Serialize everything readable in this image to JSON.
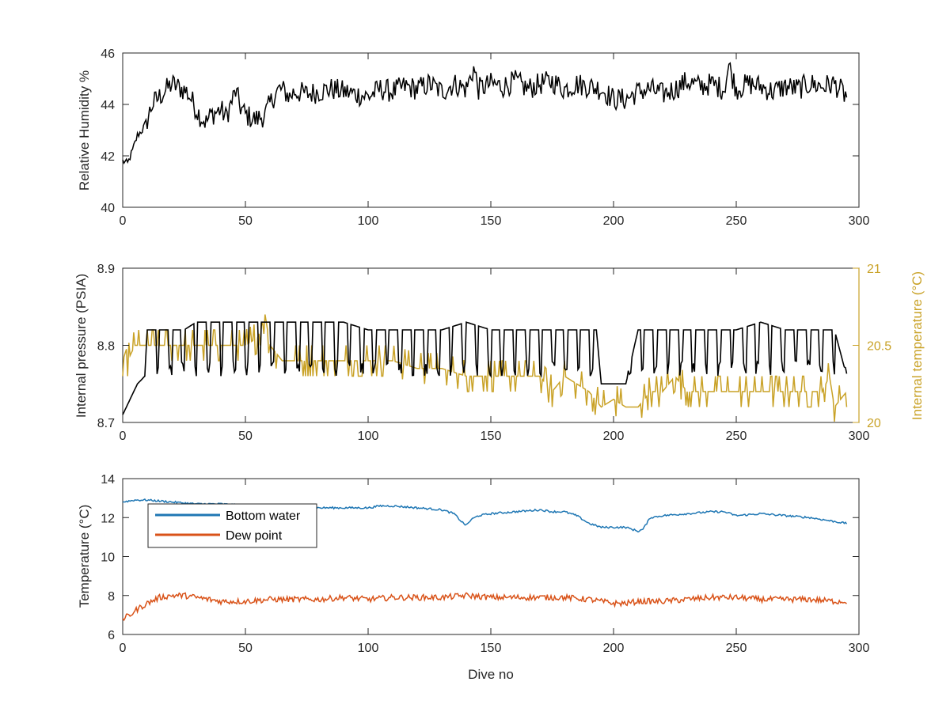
{
  "colors": {
    "rh": "#000000",
    "pressure": "#000000",
    "int_temp": "#C9A227",
    "bottom_water": "#1F77B4",
    "dew_point": "#D95319",
    "axis": "#262626"
  },
  "chart_data": [
    {
      "type": "line",
      "xlabel": "",
      "ylabel": "Relative Humidity %",
      "xlim": [
        0,
        300
      ],
      "ylim": [
        40,
        46
      ],
      "xticks": [
        "0",
        "50",
        "100",
        "150",
        "200",
        "250",
        "300"
      ],
      "yticks": [
        "40",
        "42",
        "44",
        "46"
      ],
      "grid": false,
      "series": [
        {
          "x": [
            0,
            2,
            4,
            6,
            8,
            10,
            12,
            14,
            16,
            18,
            20,
            22,
            24,
            26,
            28,
            30,
            32,
            34,
            36,
            38,
            40,
            42,
            44,
            46,
            48,
            50,
            52,
            54,
            56,
            58,
            60,
            62,
            64,
            66,
            68,
            70,
            75,
            80,
            85,
            90,
            95,
            100,
            105,
            110,
            115,
            120,
            125,
            130,
            135,
            140,
            143,
            145,
            150,
            155,
            160,
            165,
            170,
            175,
            180,
            185,
            190,
            195,
            200,
            205,
            210,
            215,
            220,
            225,
            230,
            235,
            240,
            245,
            247,
            250,
            255,
            260,
            265,
            270,
            275,
            280,
            285,
            290,
            295
          ],
          "values": [
            41.8,
            41.7,
            42.2,
            42.8,
            43.0,
            43.4,
            44.0,
            44.2,
            44.4,
            44.6,
            44.8,
            44.7,
            44.6,
            44.5,
            44.2,
            43.8,
            43.5,
            43.3,
            43.6,
            43.7,
            43.8,
            43.5,
            44.0,
            44.5,
            43.9,
            43.6,
            43.5,
            43.4,
            43.5,
            43.6,
            44.0,
            44.4,
            44.6,
            44.5,
            44.3,
            44.5,
            44.4,
            44.5,
            44.6,
            44.5,
            44.4,
            44.3,
            44.6,
            44.5,
            44.7,
            44.6,
            44.8,
            44.5,
            44.8,
            44.6,
            45.4,
            44.6,
            44.8,
            44.7,
            44.9,
            44.6,
            44.8,
            44.9,
            44.6,
            44.8,
            44.7,
            44.6,
            44.2,
            44.2,
            44.5,
            44.6,
            44.4,
            44.6,
            44.9,
            44.7,
            44.8,
            44.6,
            45.5,
            44.6,
            44.8,
            44.7,
            44.5,
            44.7,
            44.6,
            44.8,
            44.7,
            44.8,
            44.3
          ]
        }
      ]
    },
    {
      "type": "line",
      "xlabel": "",
      "ylabel": "Internal pressure (PSIA)",
      "ylabel_right": "Internal temperature (°C)",
      "xlim": [
        0,
        300
      ],
      "ylim": [
        8.7,
        8.9
      ],
      "ylim_right": [
        20,
        21
      ],
      "xticks": [
        "0",
        "50",
        "100",
        "150",
        "200",
        "250",
        "300"
      ],
      "yticks": [
        "8.7",
        "8.8",
        "8.9"
      ],
      "yticks_right": [
        "20",
        "20.5",
        "21"
      ],
      "grid": false,
      "series": [
        {
          "axis": "left",
          "x": [
            0,
            3,
            6,
            9,
            10,
            15,
            20,
            25,
            30,
            40,
            50,
            60,
            70,
            80,
            90,
            100,
            110,
            120,
            130,
            140,
            150,
            160,
            170,
            180,
            190,
            193,
            195,
            200,
            205,
            210,
            220,
            230,
            240,
            250,
            260,
            270,
            280,
            290,
            295
          ],
          "values": [
            8.71,
            8.73,
            8.75,
            8.76,
            8.82,
            8.82,
            8.82,
            8.82,
            8.83,
            8.83,
            8.83,
            8.83,
            8.83,
            8.83,
            8.83,
            8.82,
            8.82,
            8.82,
            8.82,
            8.83,
            8.82,
            8.82,
            8.82,
            8.82,
            8.82,
            8.82,
            8.75,
            8.75,
            8.75,
            8.82,
            8.82,
            8.82,
            8.82,
            8.82,
            8.83,
            8.82,
            8.82,
            8.82,
            8.76
          ],
          "oscillation_low": 8.77
        },
        {
          "axis": "right",
          "x": [
            0,
            2,
            5,
            8,
            12,
            16,
            20,
            30,
            40,
            50,
            55,
            58,
            60,
            65,
            70,
            80,
            90,
            100,
            110,
            120,
            130,
            140,
            150,
            160,
            170,
            175,
            180,
            190,
            195,
            200,
            205,
            210,
            215,
            220,
            225,
            230,
            240,
            250,
            260,
            270,
            280,
            285,
            288,
            290,
            295
          ],
          "values": [
            20.3,
            20.4,
            20.5,
            20.5,
            20.5,
            20.5,
            20.5,
            20.5,
            20.5,
            20.5,
            20.55,
            20.7,
            20.5,
            20.4,
            20.4,
            20.4,
            20.4,
            20.4,
            20.4,
            20.35,
            20.35,
            20.3,
            20.3,
            20.3,
            20.3,
            20.2,
            20.3,
            20.2,
            20.1,
            20.15,
            20.1,
            20.1,
            20.2,
            20.2,
            20.3,
            20.2,
            20.2,
            20.2,
            20.2,
            20.2,
            20.2,
            20.2,
            20.3,
            20.1,
            20.2
          ]
        }
      ]
    },
    {
      "type": "line",
      "xlabel": "Dive no",
      "ylabel": "Temperature (°C)",
      "xlim": [
        0,
        300
      ],
      "ylim": [
        6,
        14
      ],
      "xticks": [
        "0",
        "50",
        "100",
        "150",
        "200",
        "250",
        "300"
      ],
      "yticks": [
        "6",
        "8",
        "10",
        "12",
        "14"
      ],
      "grid": false,
      "legend": "top-left",
      "series": [
        {
          "name": "Bottom water",
          "x": [
            0,
            5,
            10,
            20,
            30,
            40,
            50,
            60,
            70,
            80,
            90,
            100,
            105,
            110,
            120,
            130,
            135,
            138,
            140,
            142,
            145,
            150,
            160,
            170,
            175,
            180,
            185,
            190,
            195,
            200,
            205,
            210,
            212,
            215,
            220,
            230,
            240,
            245,
            250,
            260,
            270,
            280,
            290,
            295
          ],
          "values": [
            12.8,
            12.9,
            12.9,
            12.8,
            12.7,
            12.7,
            12.6,
            12.6,
            12.5,
            12.5,
            12.5,
            12.5,
            12.6,
            12.6,
            12.5,
            12.4,
            12.2,
            11.8,
            11.6,
            11.9,
            12.1,
            12.2,
            12.3,
            12.4,
            12.3,
            12.3,
            12.1,
            11.7,
            11.5,
            11.5,
            11.5,
            11.3,
            11.4,
            12.0,
            12.1,
            12.2,
            12.3,
            12.3,
            12.1,
            12.2,
            12.1,
            12.0,
            11.8,
            11.7
          ]
        },
        {
          "name": "Dew point",
          "x": [
            0,
            3,
            6,
            10,
            15,
            20,
            25,
            30,
            40,
            50,
            60,
            70,
            80,
            90,
            100,
            110,
            120,
            130,
            140,
            150,
            160,
            170,
            180,
            190,
            200,
            205,
            210,
            220,
            230,
            240,
            250,
            260,
            270,
            280,
            290,
            295
          ],
          "values": [
            6.8,
            7.0,
            7.3,
            7.6,
            7.9,
            8.0,
            8.0,
            7.9,
            7.7,
            7.7,
            7.8,
            7.8,
            7.8,
            7.9,
            7.8,
            7.9,
            7.9,
            7.9,
            8.0,
            7.9,
            7.9,
            7.9,
            7.9,
            7.8,
            7.6,
            7.6,
            7.7,
            7.7,
            7.8,
            7.9,
            7.9,
            7.8,
            7.8,
            7.8,
            7.7,
            7.7
          ]
        }
      ]
    }
  ]
}
